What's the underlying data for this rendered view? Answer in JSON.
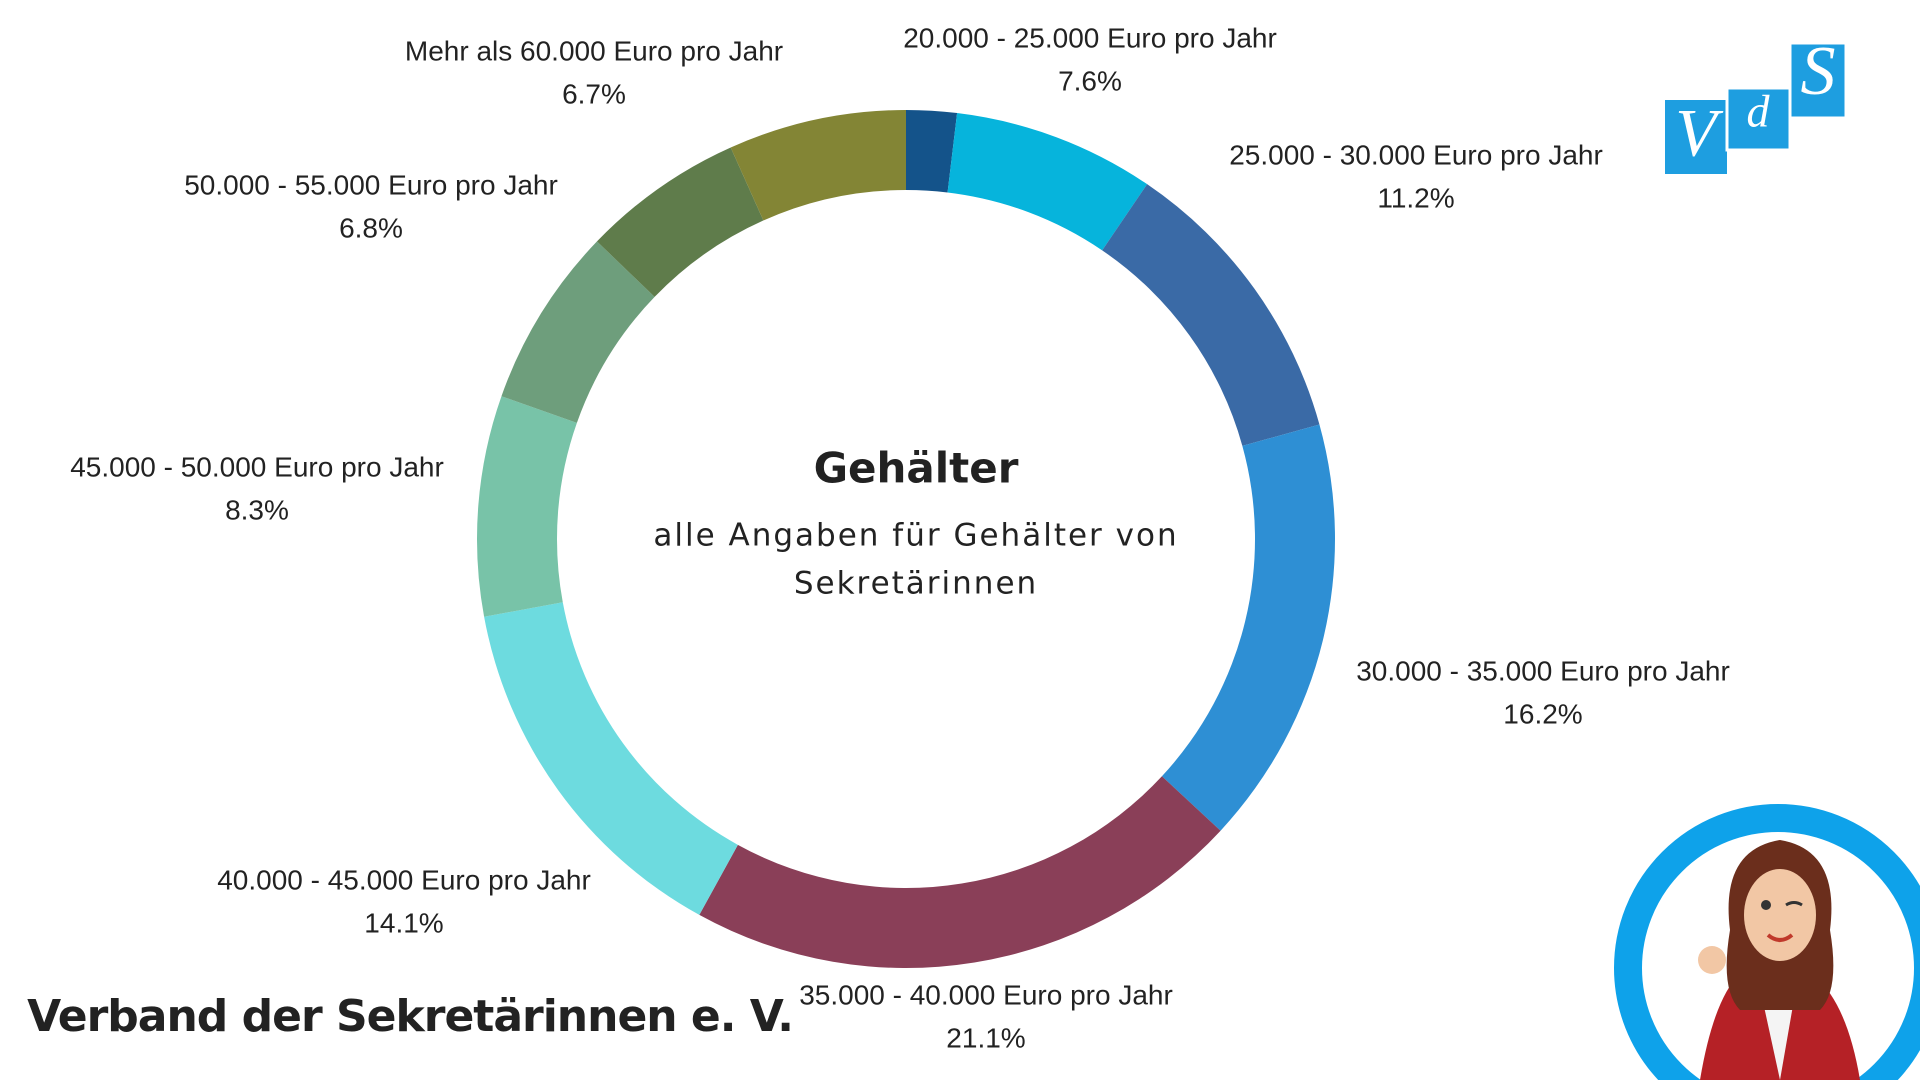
{
  "chart_data": {
    "type": "donut",
    "title": "Gehälter",
    "subtitle": [
      "alle Angaben für Gehälter von",
      "Sekretärinnen"
    ],
    "categories": [
      null,
      "20.000 - 25.000 Euro pro Jahr",
      "25.000 - 30.000 Euro pro Jahr",
      "30.000 - 35.000 Euro pro Jahr",
      "35.000 - 40.000 Euro pro Jahr",
      "40.000 - 45.000 Euro pro Jahr",
      "45.000 - 50.000 Euro pro Jahr",
      "50.000 - 55.000 Euro pro Jahr",
      null,
      "Mehr als 60.000 Euro pro Jahr"
    ],
    "values": [
      1.9,
      7.6,
      11.2,
      16.2,
      21.1,
      14.1,
      8.3,
      6.8,
      6.1,
      6.7
    ],
    "value_labels": [
      null,
      "7.6%",
      "11.2%",
      "16.2%",
      "21.1%",
      "14.1%",
      "8.3%",
      "6.8%",
      null,
      "6.7%"
    ],
    "colors": [
      "#14538a",
      "#06b4dc",
      "#3a6aa6",
      "#2e8fd4",
      "#8a3f58",
      "#6ddbdf",
      "#78c3a8",
      "#6e9e7c",
      "#5f7c4b",
      "#838535"
    ]
  },
  "footer": "Verband der Sekretärinnen e. V.",
  "logo": [
    "V",
    "d",
    "S"
  ]
}
